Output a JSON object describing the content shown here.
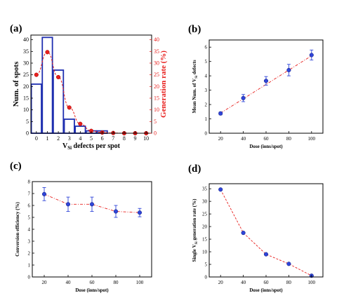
{
  "chart_data": [
    {
      "panel": "(a)",
      "type": "bar",
      "xlabel": "V",
      "xlabel_sub": "Si",
      "xlabel_rest": " defects per spot",
      "ylabel": "Num. of spots",
      "y2label": "Generation rate (%)",
      "xlim": [
        -0.5,
        10.5
      ],
      "ylim": [
        0,
        42
      ],
      "y2lim": [
        0,
        42
      ],
      "xticks": [
        0,
        1,
        2,
        3,
        4,
        5,
        6,
        7,
        8,
        9,
        10
      ],
      "yticks": [
        0,
        5,
        10,
        15,
        20,
        25,
        30,
        35,
        40
      ],
      "y2ticks": [
        0,
        5,
        10,
        15,
        20,
        25,
        30,
        35,
        40
      ],
      "colors": {
        "bars": "#1f2fb0",
        "curve": "#e8201e"
      },
      "bars": {
        "x": [
          0,
          1,
          2,
          3,
          4,
          5,
          6
        ],
        "values": [
          21,
          41,
          27,
          6,
          3,
          1,
          1
        ]
      },
      "points": {
        "x": [
          0,
          1,
          2,
          3,
          4,
          5,
          6,
          7,
          8,
          9,
          10
        ],
        "values": [
          25,
          34.7,
          24,
          11,
          4,
          1,
          0.3,
          0.1,
          0,
          0,
          0
        ]
      }
    },
    {
      "panel": "(b)",
      "type": "scatter",
      "xlabel": "Dose (ions/spot)",
      "ylabel": "Mean Num. of V",
      "ylabel_sub": "Si",
      "ylabel_rest": " defects",
      "xlim": [
        10,
        110
      ],
      "ylim": [
        0,
        6.5
      ],
      "xticks": [
        20,
        40,
        60,
        80,
        100
      ],
      "yticks": [
        0,
        1,
        2,
        3,
        4,
        5,
        6
      ],
      "colors": {
        "points": "#2f45d8",
        "line": "#e8201e"
      },
      "x": [
        20,
        40,
        60,
        80,
        100
      ],
      "y": [
        1.38,
        2.45,
        3.65,
        4.4,
        5.45
      ],
      "err": [
        0.1,
        0.25,
        0.3,
        0.4,
        0.35
      ],
      "fit": {
        "x": [
          20,
          100
        ],
        "y": [
          1.4,
          5.4
        ]
      }
    },
    {
      "panel": "(c)",
      "type": "scatter",
      "xlabel": "Dose (ions/spot)",
      "ylabel": "Conversion efficiency (%)",
      "xlim": [
        10,
        110
      ],
      "ylim": [
        0,
        8
      ],
      "xticks": [
        20,
        40,
        60,
        80,
        100
      ],
      "yticks": [
        0,
        1,
        2,
        3,
        4,
        5,
        6,
        7,
        8
      ],
      "colors": {
        "points": "#2f45d8",
        "line": "#e8201e"
      },
      "x": [
        20,
        40,
        60,
        80,
        100
      ],
      "y": [
        6.95,
        6.1,
        6.1,
        5.5,
        5.4
      ],
      "err": [
        0.55,
        0.6,
        0.6,
        0.5,
        0.35
      ]
    },
    {
      "panel": "(d)",
      "type": "scatter",
      "xlabel": "Dose (ions/spot)",
      "ylabel": "Single V",
      "ylabel_sub": "Si",
      "ylabel_rest": " generation rate (%)",
      "xlim": [
        10,
        110
      ],
      "ylim": [
        0,
        37
      ],
      "xticks": [
        20,
        40,
        60,
        80,
        100
      ],
      "yticks": [
        0,
        5,
        10,
        15,
        20,
        25,
        30,
        35
      ],
      "colors": {
        "points": "#2f45d8",
        "line": "#e8201e"
      },
      "x": [
        20,
        40,
        60,
        80,
        100
      ],
      "y": [
        34.7,
        17.5,
        9.0,
        5.2,
        0.5
      ],
      "err": [
        0.3,
        0.3,
        0.2,
        0.2,
        0.1
      ]
    }
  ]
}
